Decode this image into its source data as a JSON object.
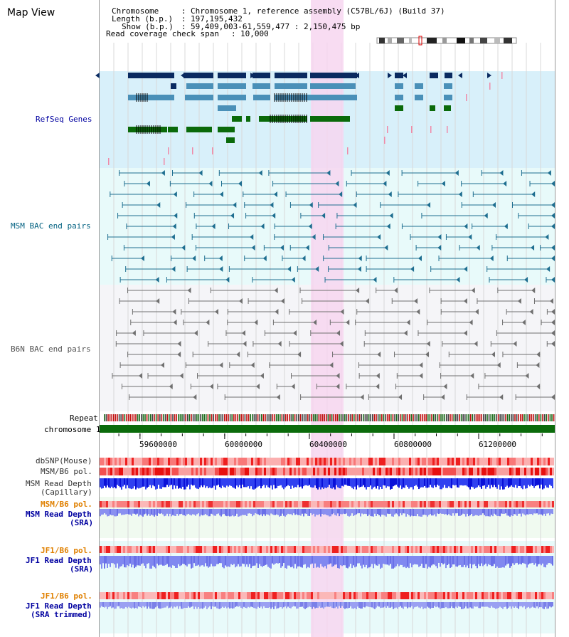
{
  "view_title": "Map View",
  "info": {
    "chromosome_label": "Chromosome",
    "chromosome_value": "Chromosome 1, reference assembly (C57BL/6J) (Build 37)",
    "length_label": "Length (b.p.)",
    "length_value": "197,195,432",
    "show_label": "Show (b.p.)",
    "show_value": "59,409,003-61,559,477 : 2,150,475 bp",
    "coverage_label": "Read coverage check span",
    "coverage_value": "10,000"
  },
  "tracks": {
    "refseq": "RefSeq Genes",
    "msm_bac": "MSM BAC end pairs",
    "b6n_bac": "B6N BAC end pairs",
    "repeat": "Repeat",
    "chromosome": "chromosome 1",
    "dbsnp": "dbSNP(Mouse)",
    "msm_b6_pol": "MSM/B6 pol.",
    "msm_depth_cap_1": "MSM Read Depth",
    "msm_depth_cap_2": "(Capillary)",
    "msm_b6_pol2": "MSM/B6 pol.",
    "msm_depth_sra_1": "MSM Read Depth",
    "msm_depth_sra_2": "(SRA)",
    "jf1_b6_pol": "JF1/B6 pol.",
    "jf1_depth_sra_1": "JF1 Read Depth",
    "jf1_depth_sra_2": "(SRA)",
    "jf1_b6_pol2": "JF1/B6 pol.",
    "jf1_depth_trim_1": "JF1 Read Depth",
    "jf1_depth_trim_2": "(SRA trimmed)"
  },
  "axis": {
    "ticks": [
      "59600000",
      "60000000",
      "60400000",
      "60800000",
      "61200000"
    ],
    "tick_values": [
      59600000,
      60000000,
      60400000,
      60800000,
      61200000
    ],
    "start": 59409003,
    "end": 61559477
  },
  "colors": {
    "refseq_bg": "#d8f0fa",
    "msm_bg": "#e8fafa",
    "b6n_bg": "#f5f5f8",
    "highlight": "#f7d6f0",
    "gene_dark": "#0a2a60",
    "gene_mid": "#4a90b8",
    "gene_green": "#0a6a0a",
    "msm_pair": "#1e6e90",
    "b6n_pair": "#707070",
    "chrom": "#0b6b0b",
    "label_blue": "#0000a0",
    "label_teal": "#006080",
    "label_orange": "#e08000"
  }
}
